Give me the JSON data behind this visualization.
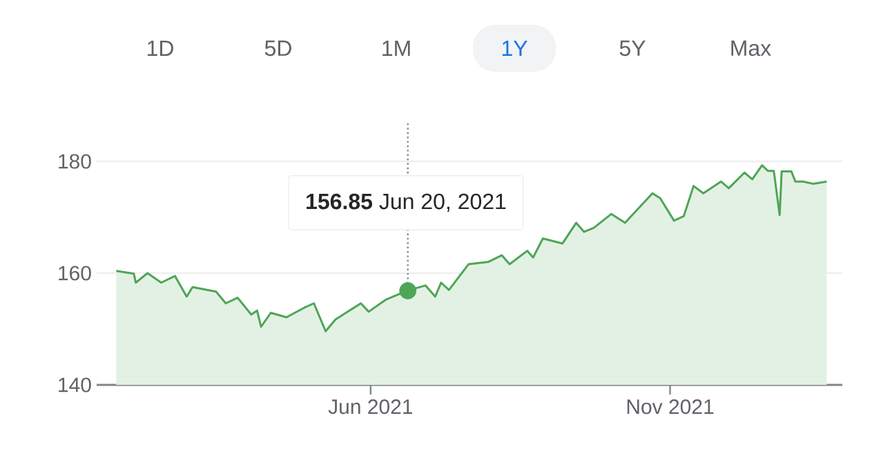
{
  "chart_data": {
    "type": "area",
    "annotations": [
      "1D",
      "5D",
      "1M",
      "1Y",
      "5Y",
      "Max",
      "**156.85**  Jun 20, 2021"
    ],
    "x": [
      "2021-01-22",
      "2021-01-31",
      "2021-02-01",
      "2021-02-07",
      "2021-02-14",
      "2021-02-21",
      "2021-02-27",
      "2021-03-02",
      "2021-03-14",
      "2021-03-19",
      "2021-03-25",
      "2021-04-01",
      "2021-04-04",
      "2021-04-06",
      "2021-04-11",
      "2021-04-19",
      "2021-04-28",
      "2021-05-03",
      "2021-05-06",
      "2021-05-09",
      "2021-05-14",
      "2021-05-27",
      "2021-05-31",
      "2021-06-09",
      "2021-06-20",
      "2021-06-29",
      "2021-07-04",
      "2021-07-07",
      "2021-07-11",
      "2021-07-21",
      "2021-07-31",
      "2021-08-07",
      "2021-08-11",
      "2021-08-20",
      "2021-08-23",
      "2021-08-28",
      "2021-09-07",
      "2021-09-14",
      "2021-09-18",
      "2021-09-23",
      "2021-10-02",
      "2021-10-09",
      "2021-10-23",
      "2021-10-27",
      "2021-11-03",
      "2021-11-08",
      "2021-11-13",
      "2021-11-18",
      "2021-11-27",
      "2021-12-01",
      "2021-12-09",
      "2021-12-13",
      "2021-12-18",
      "2021-12-21",
      "2021-12-24",
      "2021-12-27",
      "2021-12-28",
      "2022-01-02",
      "2022-01-04",
      "2022-01-08",
      "2022-01-13",
      "2022-01-20"
    ],
    "series": [
      {
        "type": "scatter",
        "x": [
          "2021-06-20"
        ],
        "color": "#4ea556",
        "values": [
          156.85
        ]
      },
      {
        "color": "#4ea556",
        "values": [
          160.4,
          159.9,
          158.3,
          160.0,
          158.3,
          159.5,
          155.8,
          157.5,
          156.7,
          154.6,
          155.6,
          152.6,
          153.3,
          150.4,
          152.9,
          152.1,
          153.8,
          154.6,
          152.1,
          149.6,
          151.7,
          154.6,
          153.1,
          155.3,
          156.9,
          157.8,
          155.8,
          158.3,
          157.0,
          161.6,
          162.0,
          163.2,
          161.6,
          164.0,
          162.8,
          166.2,
          165.3,
          169.0,
          167.4,
          168.1,
          170.6,
          169.0,
          174.3,
          173.4,
          169.4,
          170.2,
          175.6,
          174.3,
          176.4,
          175.2,
          178.0,
          176.8,
          179.3,
          178.3,
          178.3,
          170.4,
          178.2,
          178.2,
          176.4,
          176.4,
          176.0,
          176.4
        ]
      }
    ],
    "xlim": [
      "2021-01-12",
      "2022-01-28"
    ],
    "ylim": [
      140,
      180
    ],
    "xticks": [
      {
        "value": "2021-06-01",
        "label": "Jun 2021"
      },
      {
        "value": "2021-11-01",
        "label": "Nov 2021"
      }
    ],
    "yticks": [
      140,
      160,
      180
    ],
    "grid": "y",
    "ref_lines": [
      {
        "axis": "x",
        "value": "2021-06-20",
        "color": "#80868b",
        "line_style": "dotted"
      }
    ]
  }
}
